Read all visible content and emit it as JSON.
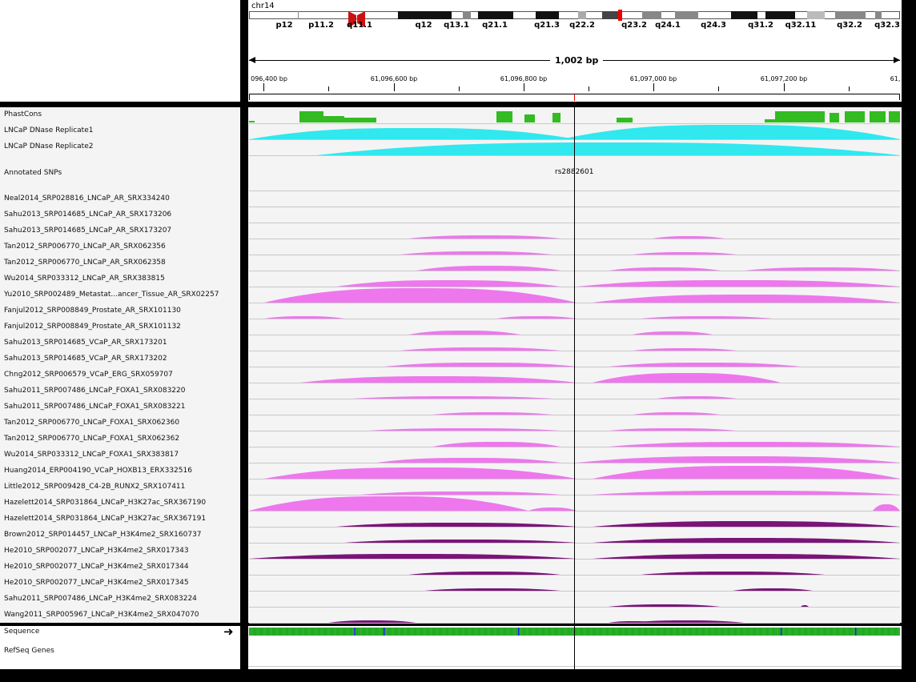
{
  "header": {
    "chromosome": "chr14",
    "bands": [
      "p12",
      "p11.2",
      "q11.1",
      "q12",
      "q13.1",
      "q21.1",
      "q21.3",
      "q22.2",
      "q23.2",
      "q24.1",
      "q24.3",
      "q31.2",
      "q32.11",
      "q32.2",
      "q32.3"
    ],
    "span_label": "1,002 bp",
    "ruler_ticks": [
      "096,400 bp",
      "61,096,600 bp",
      "61,096,800 bp",
      "61,097,000 bp",
      "61,097,200 bp",
      "61,"
    ]
  },
  "tracks": {
    "phastcons": "PhastCons",
    "dnase": [
      "LNCaP DNase Replicate1",
      "LNCaP DNase Replicate2"
    ],
    "snps": "Annotated SNPs",
    "snp_id": "rs2882601",
    "chip": [
      "Neal2014_SRP028816_LNCaP_AR_SRX334240",
      "Sahu2013_SRP014685_LNCaP_AR_SRX173206",
      "Sahu2013_SRP014685_LNCaP_AR_SRX173207",
      "Tan2012_SRP006770_LNCaP_AR_SRX062356",
      "Tan2012_SRP006770_LNCaP_AR_SRX062358",
      "Wu2014_SRP033312_LNCaP_AR_SRX383815",
      "Yu2010_SRP002489_Metastat...ancer_Tissue_AR_SRX02257",
      "Fanjul2012_SRP008849_Prostate_AR_SRX101130",
      "Fanjul2012_SRP008849_Prostate_AR_SRX101132",
      "Sahu2013_SRP014685_VCaP_AR_SRX173201",
      "Sahu2013_SRP014685_VCaP_AR_SRX173202",
      "Chng2012_SRP006579_VCaP_ERG_SRX059707",
      "Sahu2011_SRP007486_LNCaP_FOXA1_SRX083220",
      "Sahu2011_SRP007486_LNCaP_FOXA1_SRX083221",
      "Tan2012_SRP006770_LNCaP_FOXA1_SRX062360",
      "Tan2012_SRP006770_LNCaP_FOXA1_SRX062362",
      "Wu2014_SRP033312_LNCaP_FOXA1_SRX383817",
      "Huang2014_ERP004190_VCaP_HOXB13_ERX332516",
      "Little2012_SRP009428_C4-2B_RUNX2_SRX107411",
      "Hazelett2014_SRP031864_LNCaP_H3K27ac_SRX367190",
      "Hazelett2014_SRP031864_LNCaP_H3K27ac_SRX367191",
      "Brown2012_SRP014457_LNCaP_H3K4me2_SRX160737",
      "He2010_SRP002077_LNCaP_H3K4me2_SRX017343",
      "He2010_SRP002077_LNCaP_H3K4me2_SRX017344",
      "He2010_SRP002077_LNCaP_H3K4me2_SRX017345",
      "Sahu2011_SRP007486_LNCaP_H3K4me2_SRX083224",
      "Wang2011_SRP005967_LNCaP_H3K4me2_SRX047070"
    ],
    "sequence": "Sequence",
    "refseq": "RefSeq Genes"
  },
  "colors": {
    "phastcons": "#33bb22",
    "dnase": "#30e8ee",
    "tf": "#ee77ee",
    "histone": "#7a1478",
    "centromere": "#cc1111",
    "locator": "#ee0000"
  }
}
